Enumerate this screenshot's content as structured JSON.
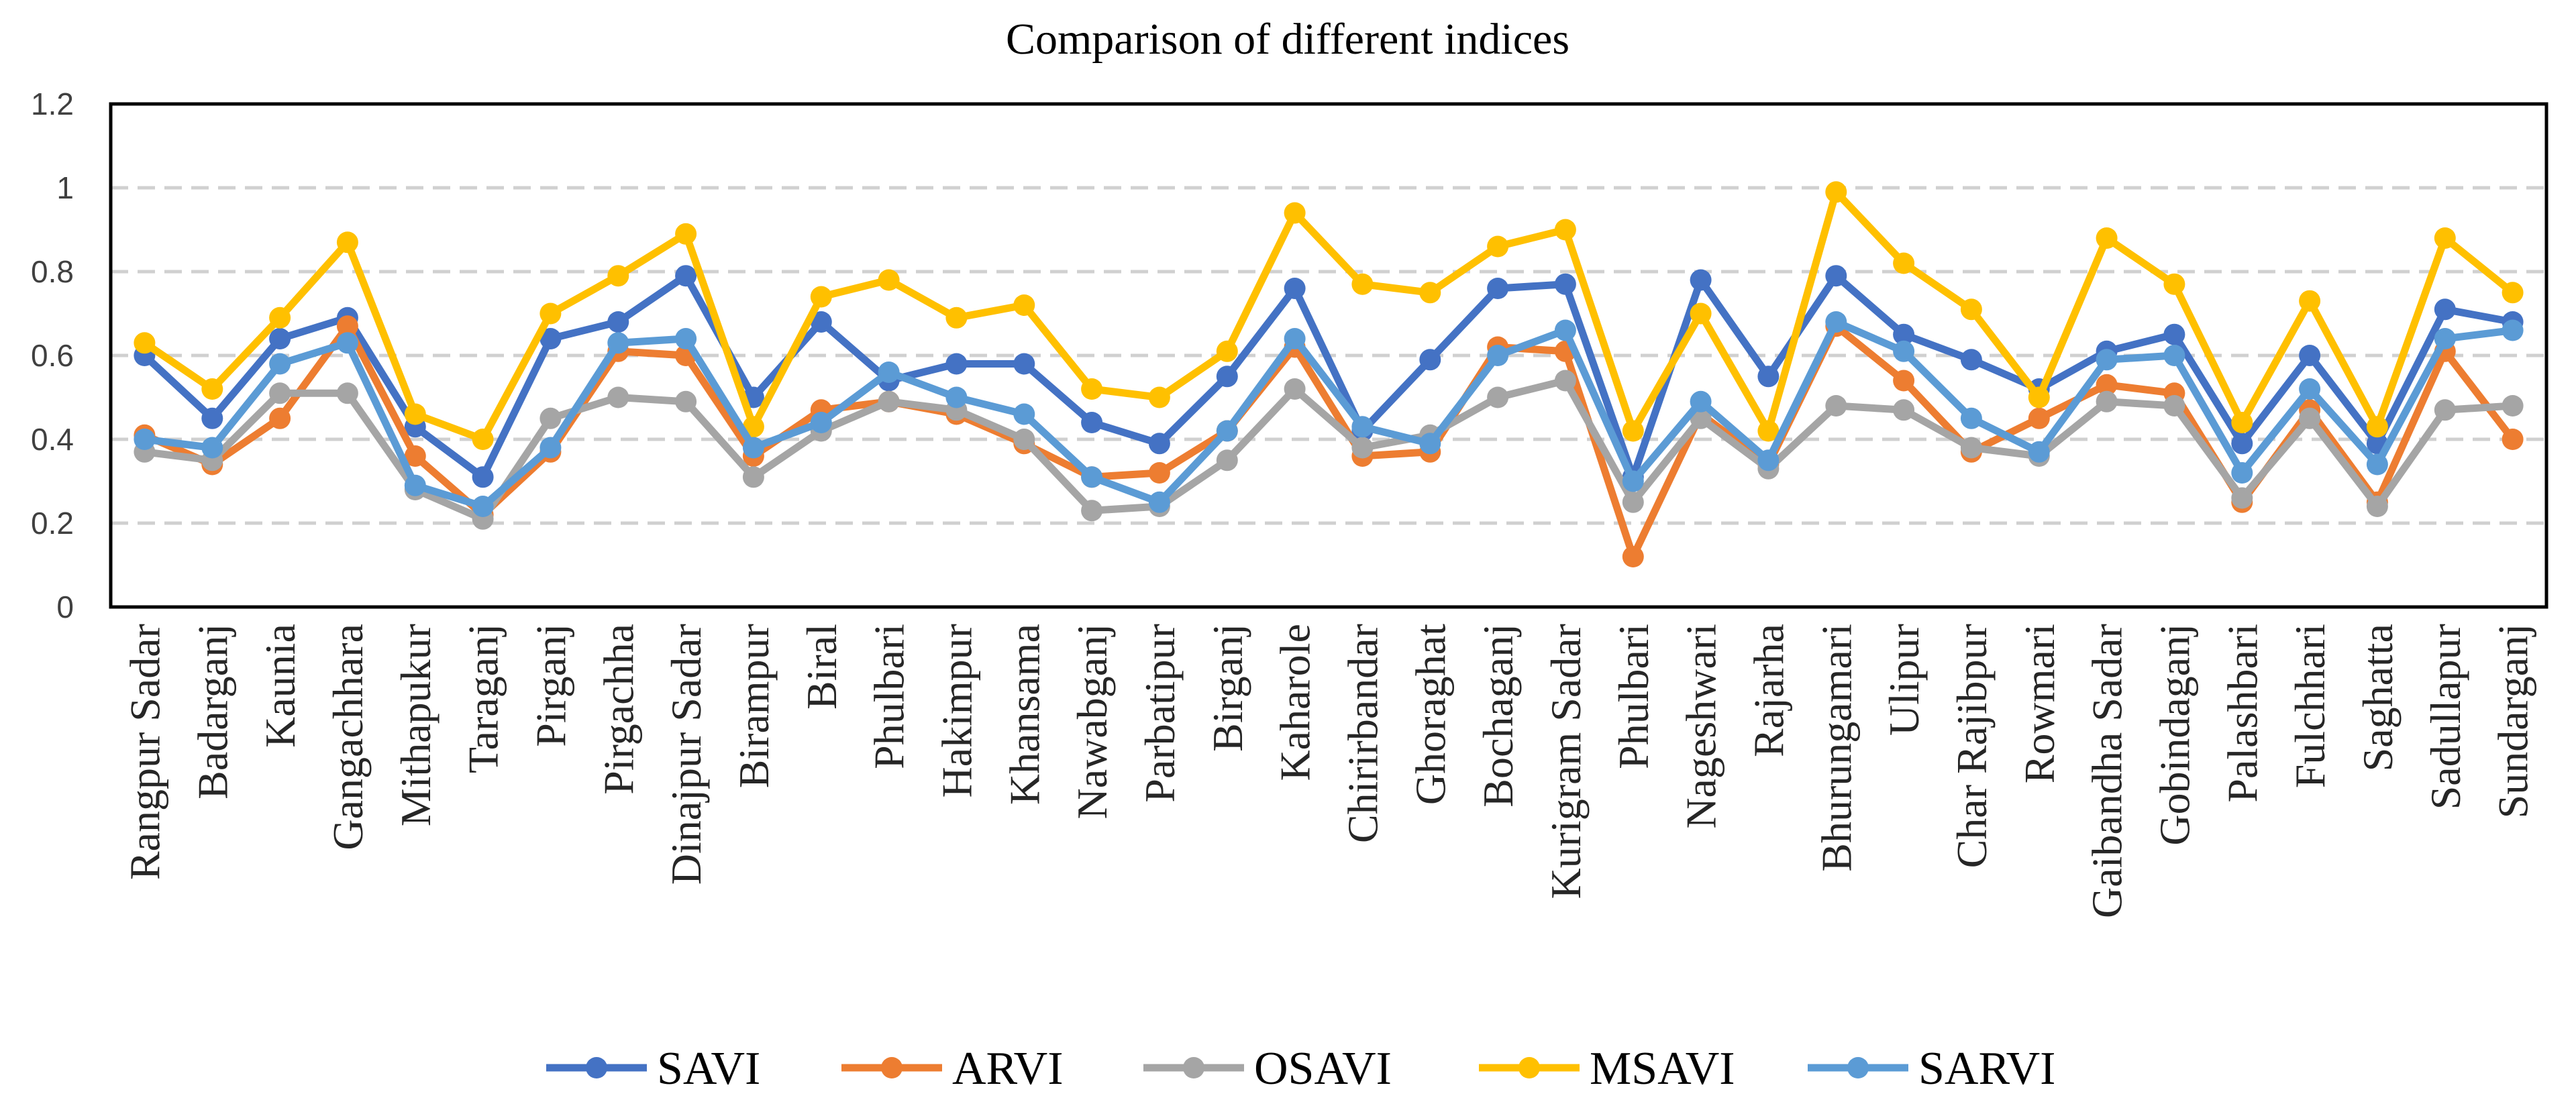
{
  "chart_data": {
    "type": "line",
    "title": "Comparison of different indices",
    "xlabel": "",
    "ylabel": "",
    "ylim": [
      0,
      1.2
    ],
    "yticks": [
      "0",
      "0.2",
      "0.4",
      "0.6",
      "0.8",
      "1",
      "1.2"
    ],
    "grid": "horizontal dashed",
    "legend_position": "bottom",
    "categories": [
      "Rangpur Sadar",
      "Badarganj",
      "Kaunia",
      "Gangachhara",
      "Mithapukur",
      "Taraganj",
      "Pirganj",
      "Pirgachha",
      "Dinajpur Sadar",
      "Birampur",
      "Biral",
      "Phulbari",
      "Hakimpur",
      "Khansama",
      "Nawabganj",
      "Parbatipur",
      "Birganj",
      "Kaharole",
      "Chirirbandar",
      "Ghoraghat",
      "Bochaganj",
      "Kurigram Sadar",
      "Phulbari",
      "Nageshwari",
      "Rajarha",
      "Bhurungamari",
      "Ulipur",
      "Char Rajibpur",
      "Rowmari",
      "Gaibandha Sadar",
      "Gobindaganj",
      "Palashbari",
      "Fulchhari",
      "Saghatta",
      "Sadullapur",
      "Sundarganj"
    ],
    "series": [
      {
        "name": "SAVI",
        "color": "#4472C4",
        "values": [
          0.6,
          0.45,
          0.64,
          0.69,
          0.43,
          0.31,
          0.64,
          0.68,
          0.79,
          0.5,
          0.68,
          0.54,
          0.58,
          0.58,
          0.44,
          0.39,
          0.55,
          0.76,
          0.42,
          0.59,
          0.76,
          0.77,
          0.31,
          0.78,
          0.55,
          0.79,
          0.65,
          0.59,
          0.52,
          0.61,
          0.65,
          0.39,
          0.6,
          0.39,
          0.71,
          0.68
        ]
      },
      {
        "name": "ARVI",
        "color": "#ED7D31",
        "values": [
          0.41,
          0.34,
          0.45,
          0.67,
          0.36,
          0.22,
          0.37,
          0.61,
          0.6,
          0.36,
          0.47,
          0.49,
          0.46,
          0.39,
          0.31,
          0.32,
          0.42,
          0.62,
          0.36,
          0.37,
          0.62,
          0.61,
          0.12,
          0.46,
          0.34,
          0.67,
          0.54,
          0.37,
          0.45,
          0.53,
          0.51,
          0.25,
          0.47,
          0.25,
          0.61,
          0.4
        ]
      },
      {
        "name": "OSAVI",
        "color": "#A5A5A5",
        "values": [
          0.37,
          0.35,
          0.51,
          0.51,
          0.28,
          0.21,
          0.45,
          0.5,
          0.49,
          0.31,
          0.42,
          0.49,
          0.47,
          0.4,
          0.23,
          0.24,
          0.35,
          0.52,
          0.38,
          0.41,
          0.5,
          0.54,
          0.25,
          0.45,
          0.33,
          0.48,
          0.47,
          0.38,
          0.36,
          0.49,
          0.48,
          0.26,
          0.45,
          0.24,
          0.47,
          0.48
        ]
      },
      {
        "name": "MSAVI",
        "color": "#FFC000",
        "values": [
          0.63,
          0.52,
          0.69,
          0.87,
          0.46,
          0.4,
          0.7,
          0.79,
          0.89,
          0.43,
          0.74,
          0.78,
          0.69,
          0.72,
          0.52,
          0.5,
          0.61,
          0.94,
          0.77,
          0.75,
          0.86,
          0.9,
          0.42,
          0.7,
          0.42,
          0.99,
          0.82,
          0.71,
          0.5,
          0.88,
          0.77,
          0.44,
          0.73,
          0.43,
          0.88,
          0.75
        ]
      },
      {
        "name": "SARVI",
        "color": "#5B9BD5",
        "values": [
          0.4,
          0.38,
          0.58,
          0.63,
          0.29,
          0.24,
          0.38,
          0.63,
          0.64,
          0.38,
          0.44,
          0.56,
          0.5,
          0.46,
          0.31,
          0.25,
          0.42,
          0.64,
          0.43,
          0.39,
          0.6,
          0.66,
          0.3,
          0.49,
          0.35,
          0.68,
          0.61,
          0.45,
          0.37,
          0.59,
          0.6,
          0.32,
          0.52,
          0.34,
          0.64,
          0.66
        ]
      }
    ]
  }
}
